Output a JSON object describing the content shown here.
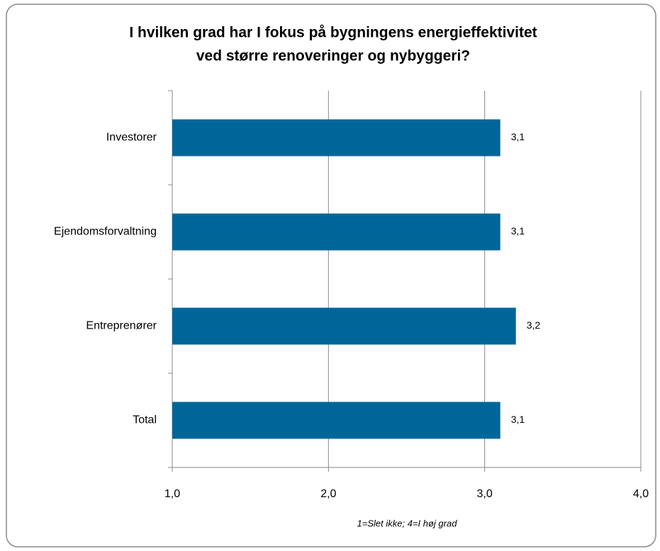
{
  "chart_data": {
    "type": "bar",
    "orientation": "horizontal",
    "title": [
      "I hvilken grad har I fokus på bygningens energieffektivitet",
      "ved større renoveringer og nybyggeri?"
    ],
    "x_label": "1=Slet ikke; 4=I høj grad",
    "categories": [
      "Investorer",
      "Ejendomsforvaltning",
      "Entreprenører",
      "Total"
    ],
    "values": [
      3.1,
      3.1,
      3.2,
      3.1
    ],
    "value_labels": [
      "3,1",
      "3,1",
      "3,2",
      "3,1"
    ],
    "color": "#006699",
    "xlim": [
      1,
      4
    ],
    "xticks": [
      {
        "value": 1,
        "label": "1,0"
      },
      {
        "value": 2,
        "label": "2,0"
      },
      {
        "value": 3,
        "label": "3,0"
      },
      {
        "value": 4,
        "label": "4,0"
      }
    ],
    "grid": true
  }
}
